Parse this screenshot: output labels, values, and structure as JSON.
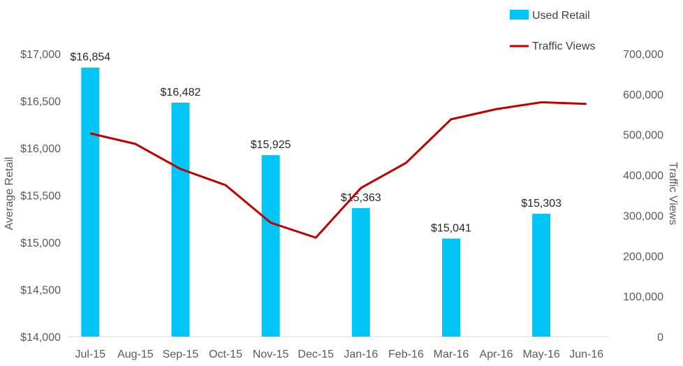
{
  "chart_data": {
    "type": "bar",
    "categories": [
      "Jul-15",
      "Aug-15",
      "Sep-15",
      "Oct-15",
      "Nov-15",
      "Dec-15",
      "Jan-16",
      "Feb-16",
      "Mar-16",
      "Apr-16",
      "May-16",
      "Jun-16"
    ],
    "series": [
      {
        "name": "Used Retail",
        "type": "bar",
        "axis": "left",
        "color": "#00C5F5",
        "values": [
          16854,
          null,
          16482,
          null,
          15925,
          null,
          15363,
          null,
          15041,
          null,
          15303,
          null
        ],
        "data_labels": [
          "$16,854",
          null,
          "$16,482",
          null,
          "$15,925",
          null,
          "$15,363",
          null,
          "$15,041",
          null,
          "$15,303",
          null
        ]
      },
      {
        "name": "Traffic Views",
        "type": "line",
        "axis": "right",
        "color": "#C00000",
        "values": [
          503000,
          477000,
          415000,
          375000,
          282000,
          245000,
          368000,
          430000,
          538000,
          563000,
          580000,
          576000
        ]
      }
    ],
    "ylabel": "Average Retail",
    "y2label": "Traffic Views",
    "ylim": [
      14000,
      17000
    ],
    "y2lim": [
      0,
      700000
    ],
    "yticks": [
      "$14,000",
      "$14,500",
      "$15,000",
      "$15,500",
      "$16,000",
      "$16,500",
      "$17,000"
    ],
    "y2ticks": [
      "0",
      "100,000",
      "200,000",
      "300,000",
      "400,000",
      "500,000",
      "600,000",
      "700,000"
    ],
    "grid": false,
    "legend_position": "top-right"
  }
}
